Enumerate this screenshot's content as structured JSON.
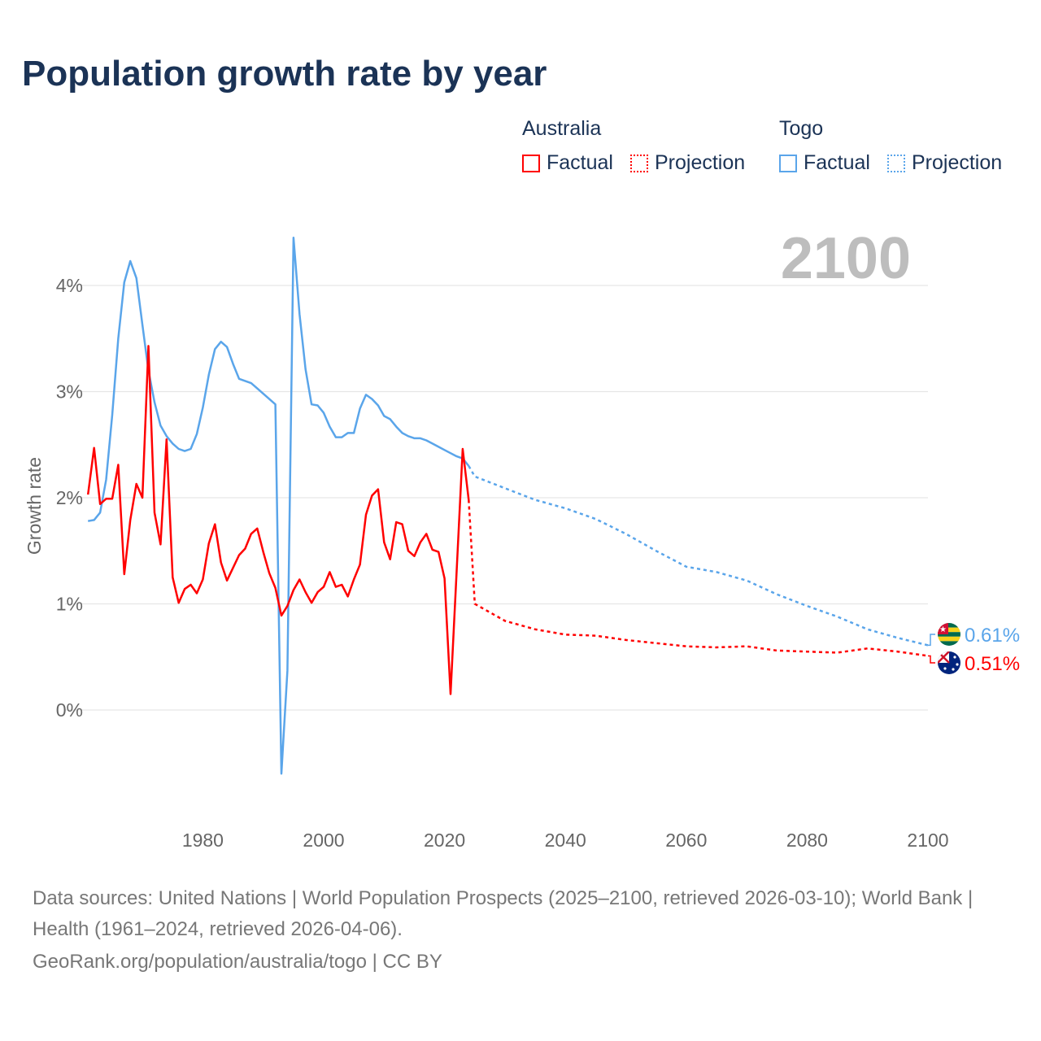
{
  "title": "Population growth rate by year",
  "legend": {
    "groups": [
      {
        "name": "Australia",
        "factual": "Factual",
        "projection": "Projection",
        "color": "#ff0000"
      },
      {
        "name": "Togo",
        "factual": "Factual",
        "projection": "Projection",
        "color": "#5aa5ea"
      }
    ]
  },
  "footer": {
    "sources": "Data sources: United Nations | World Population Prospects (2025–2100, retrieved 2026-03-10); World Bank | Health (1961–2024, retrieved 2026-04-06).",
    "credit": "GeoRank.org/population/australia/togo | CC BY"
  },
  "chart_data": {
    "type": "line",
    "title": "Population growth rate by year",
    "ylabel": "Growth rate",
    "xlabel": "",
    "year_display": "2100",
    "xlim": [
      1961,
      2100
    ],
    "ylim": [
      -0.9,
      4.6
    ],
    "xticks": [
      1980,
      2000,
      2020,
      2040,
      2060,
      2080,
      2100
    ],
    "xtick_labels": [
      "1980",
      "2000",
      "2020",
      "2040",
      "2060",
      "2080",
      "2100"
    ],
    "yticks": [
      0,
      1,
      2,
      3,
      4
    ],
    "ytick_labels": [
      "0%",
      "1%",
      "2%",
      "3%",
      "4%"
    ],
    "grid": true,
    "legend_position": "top-right",
    "series": [
      {
        "name": "Australia",
        "color": "#ff0000",
        "end_label": "0.51%",
        "flag": "australia-flag",
        "factual": {
          "x": [
            1961,
            1962,
            1963,
            1964,
            1965,
            1966,
            1967,
            1968,
            1969,
            1970,
            1971,
            1972,
            1973,
            1974,
            1975,
            1976,
            1977,
            1978,
            1979,
            1980,
            1981,
            1982,
            1983,
            1984,
            1985,
            1986,
            1987,
            1988,
            1989,
            1990,
            1991,
            1992,
            1993,
            1994,
            1995,
            1996,
            1997,
            1998,
            1999,
            2000,
            2001,
            2002,
            2003,
            2004,
            2005,
            2006,
            2007,
            2008,
            2009,
            2010,
            2011,
            2012,
            2013,
            2014,
            2015,
            2016,
            2017,
            2018,
            2019,
            2020,
            2021,
            2022,
            2023,
            2024
          ],
          "y": [
            2.03,
            2.47,
            1.94,
            1.99,
            1.99,
            2.31,
            1.28,
            1.79,
            2.13,
            2.0,
            3.43,
            1.86,
            1.56,
            2.55,
            1.25,
            1.01,
            1.14,
            1.18,
            1.1,
            1.23,
            1.57,
            1.75,
            1.39,
            1.22,
            1.34,
            1.46,
            1.52,
            1.66,
            1.71,
            1.49,
            1.29,
            1.15,
            0.89,
            0.98,
            1.13,
            1.23,
            1.11,
            1.01,
            1.11,
            1.16,
            1.3,
            1.16,
            1.18,
            1.07,
            1.23,
            1.37,
            1.84,
            2.02,
            2.08,
            1.58,
            1.42,
            1.77,
            1.75,
            1.5,
            1.45,
            1.58,
            1.66,
            1.51,
            1.49,
            1.24,
            0.15,
            1.31,
            2.46,
            1.98
          ]
        },
        "projection": {
          "x": [
            2024,
            2025,
            2030,
            2035,
            2040,
            2045,
            2050,
            2055,
            2060,
            2065,
            2070,
            2075,
            2080,
            2085,
            2090,
            2095,
            2100
          ],
          "y": [
            1.98,
            1.0,
            0.84,
            0.76,
            0.71,
            0.7,
            0.66,
            0.63,
            0.6,
            0.59,
            0.6,
            0.56,
            0.55,
            0.54,
            0.58,
            0.55,
            0.51
          ]
        }
      },
      {
        "name": "Togo",
        "color": "#5aa5ea",
        "end_label": "0.61%",
        "flag": "togo-flag",
        "factual": {
          "x": [
            1961,
            1962,
            1963,
            1964,
            1965,
            1966,
            1967,
            1968,
            1969,
            1970,
            1971,
            1972,
            1973,
            1974,
            1975,
            1976,
            1977,
            1978,
            1979,
            1980,
            1981,
            1982,
            1983,
            1984,
            1985,
            1986,
            1987,
            1988,
            1989,
            1990,
            1991,
            1992,
            1993,
            1994,
            1995,
            1996,
            1997,
            1998,
            1999,
            2000,
            2001,
            2002,
            2003,
            2004,
            2005,
            2006,
            2007,
            2008,
            2009,
            2010,
            2011,
            2012,
            2013,
            2014,
            2015,
            2016,
            2017,
            2018,
            2019,
            2020,
            2021,
            2022,
            2023,
            2024
          ],
          "y": [
            1.78,
            1.79,
            1.86,
            2.17,
            2.78,
            3.5,
            4.03,
            4.23,
            4.07,
            3.63,
            3.2,
            2.9,
            2.68,
            2.58,
            2.51,
            2.46,
            2.44,
            2.46,
            2.6,
            2.85,
            3.16,
            3.4,
            3.47,
            3.42,
            3.26,
            3.12,
            3.1,
            3.08,
            3.03,
            2.98,
            2.93,
            2.88,
            -0.6,
            0.37,
            4.45,
            3.73,
            3.21,
            2.88,
            2.87,
            2.8,
            2.67,
            2.57,
            2.57,
            2.61,
            2.61,
            2.84,
            2.97,
            2.93,
            2.87,
            2.77,
            2.74,
            2.67,
            2.61,
            2.58,
            2.56,
            2.56,
            2.54,
            2.51,
            2.48,
            2.45,
            2.42,
            2.39,
            2.37,
            2.3
          ]
        },
        "projection": {
          "x": [
            2024,
            2025,
            2030,
            2035,
            2040,
            2045,
            2050,
            2055,
            2060,
            2065,
            2070,
            2075,
            2080,
            2085,
            2090,
            2095,
            2100
          ],
          "y": [
            2.3,
            2.2,
            2.09,
            1.98,
            1.9,
            1.8,
            1.66,
            1.5,
            1.35,
            1.3,
            1.22,
            1.09,
            0.98,
            0.88,
            0.76,
            0.68,
            0.61
          ]
        }
      }
    ]
  }
}
